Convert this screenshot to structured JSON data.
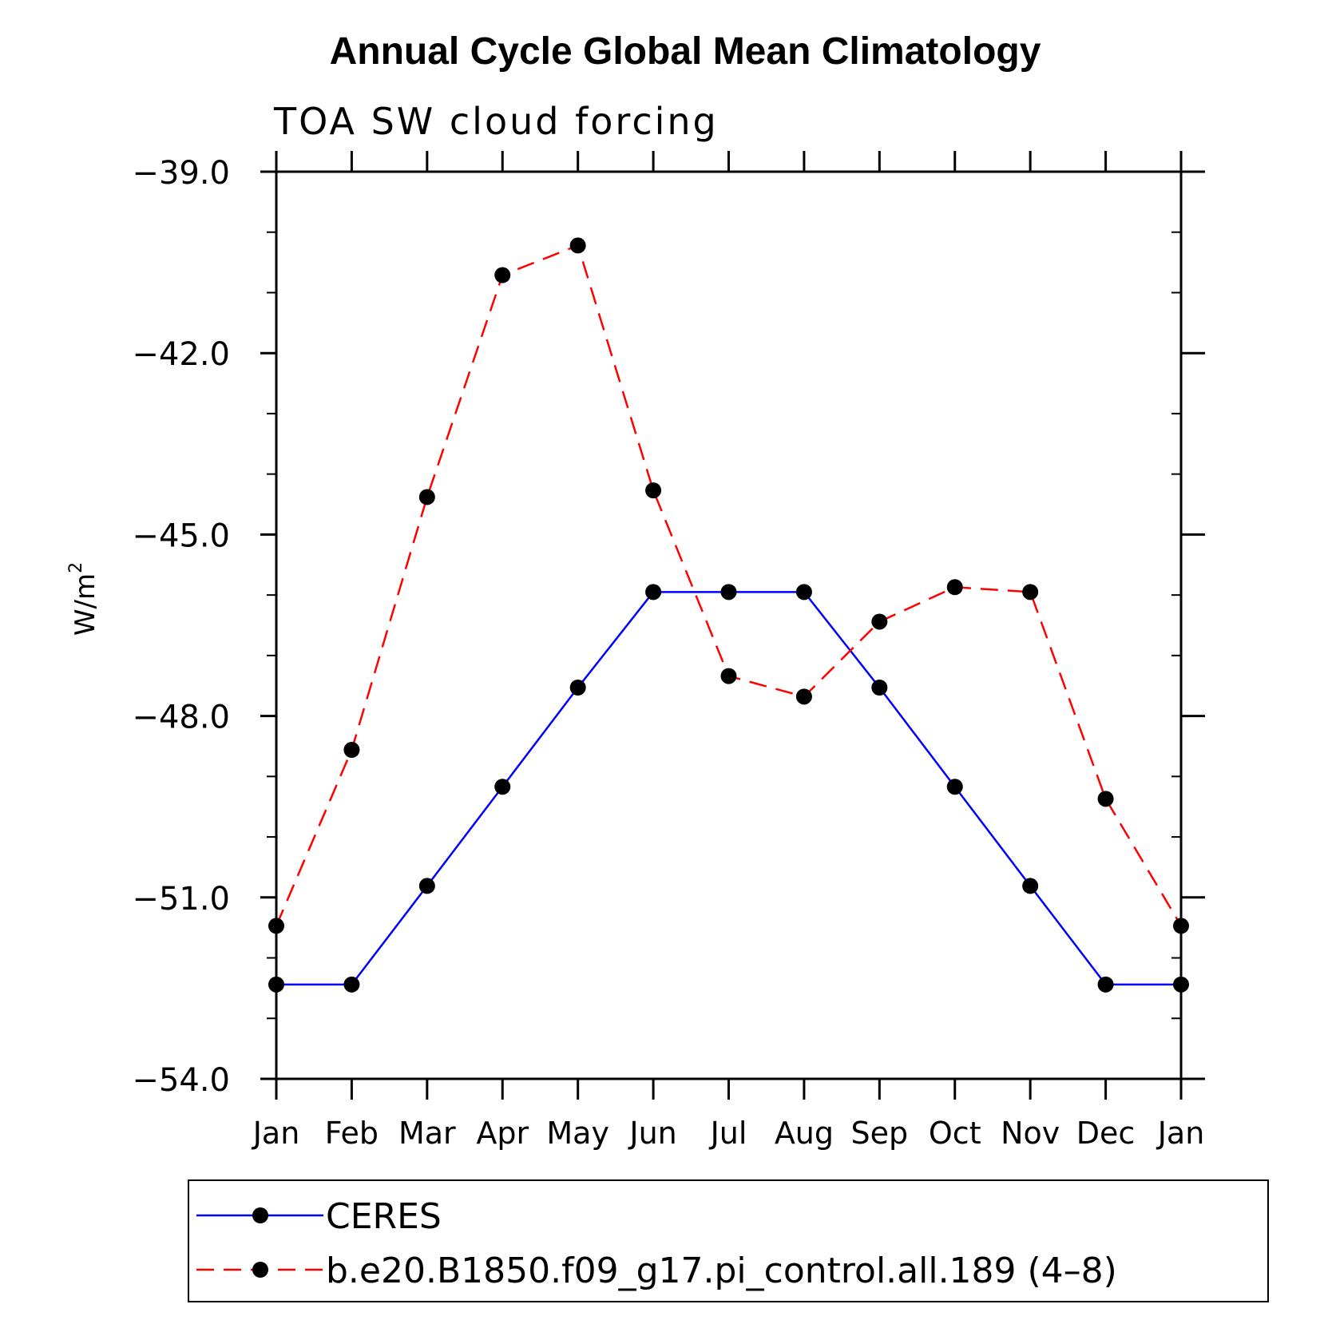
{
  "chart_data": {
    "type": "line",
    "title": "Annual Cycle Global Mean Climatology",
    "subtitle": "TOA SW cloud forcing",
    "xlabel": "",
    "ylabel_base": "W/m",
    "ylabel_superscript": "2",
    "categories": [
      "Jan",
      "Feb",
      "Mar",
      "Apr",
      "May",
      "Jun",
      "Jul",
      "Aug",
      "Sep",
      "Oct",
      "Nov",
      "Dec",
      "Jan"
    ],
    "ylim": [
      -54.0,
      -39.0
    ],
    "yticks": [
      "-39.0",
      "-42.0",
      "-45.0",
      "-48.0",
      "-51.0",
      "-54.0"
    ],
    "ytick_values": [
      -39,
      -42,
      -45,
      -48,
      -51,
      -54
    ],
    "series": [
      {
        "name": "CERES",
        "color": "#0000ff",
        "dash": "solid",
        "values": [
          -52.44,
          -52.44,
          -50.81,
          -49.17,
          -47.53,
          -45.95,
          -45.95,
          -45.95,
          -47.53,
          -49.17,
          -50.81,
          -52.44,
          -52.44
        ]
      },
      {
        "name": "b.e20.B1850.f09_g17.pi_control.all.189 (4–8)",
        "color": "#ff0000",
        "dash": "dashed",
        "values": [
          -51.47,
          -48.56,
          -44.38,
          -40.71,
          -40.22,
          -44.27,
          -47.34,
          -47.68,
          -46.44,
          -45.87,
          -45.95,
          -49.37,
          -51.47
        ]
      }
    ],
    "legend": {
      "placement": "bottom"
    }
  }
}
